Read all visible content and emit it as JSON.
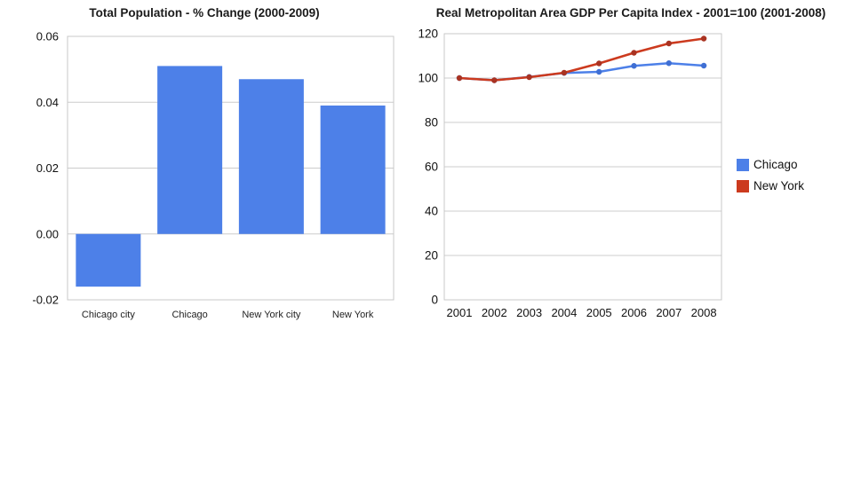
{
  "slide": {
    "background": "#ffffff"
  },
  "chart_data": [
    {
      "type": "bar",
      "title": "Total Population - % Change (2000-2009)",
      "categories": [
        "Chicago city",
        "Chicago",
        "New York city",
        "New York"
      ],
      "values": [
        -0.016,
        0.051,
        0.047,
        0.039
      ],
      "bar_color": "#4d80e8",
      "ylim": [
        -0.02,
        0.06
      ],
      "yticks": [
        -0.02,
        0,
        0.02,
        0.04,
        0.06
      ],
      "ytick_labels": [
        "-0.02",
        "0.00",
        "0.02",
        "0.04",
        "0.06"
      ],
      "xlabel": "",
      "ylabel": "",
      "grid": true,
      "grid_color": "#cccccc",
      "border_color": "#c9c9c9",
      "legend_position": "none"
    },
    {
      "type": "line",
      "title": "Real Metropolitan Area GDP Per Capita Index - 2001=100 (2001-2008)",
      "x_labels": [
        "2001",
        "2002",
        "2003",
        "2004",
        "2005",
        "2006",
        "2007",
        "2008"
      ],
      "series": [
        {
          "name": "Chicago",
          "color": "#4d80e8",
          "dot_color": "#3f6fd4",
          "values": [
            100,
            99,
            100.5,
            102.3,
            102.8,
            105.5,
            106.7,
            105.6
          ]
        },
        {
          "name": "New York",
          "color": "#cc3a1e",
          "dot_color": "#a93322",
          "values": [
            100,
            99,
            100.4,
            102.4,
            106.6,
            111.4,
            115.6,
            117.8
          ]
        }
      ],
      "ylim": [
        0,
        120
      ],
      "yticks": [
        0,
        20,
        40,
        60,
        80,
        100,
        120
      ],
      "ytick_labels": [
        "0",
        "20",
        "40",
        "60",
        "80",
        "100",
        "120"
      ],
      "xlabel": "",
      "ylabel": "",
      "grid": true,
      "grid_color": "#cccccc",
      "border_color": "#c9c9c9",
      "legend_position": "right"
    }
  ]
}
